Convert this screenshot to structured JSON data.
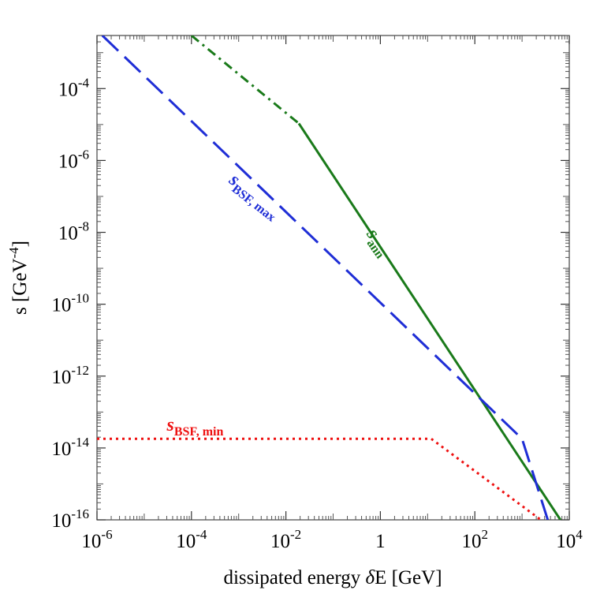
{
  "chart_data": {
    "type": "line",
    "xscale": "log",
    "yscale": "log",
    "xlim": [
      1e-06,
      10000
    ],
    "ylim": [
      1e-16,
      0.003
    ],
    "grid": false,
    "xlabel": {
      "prefix": "dissipated   energy   ",
      "delta": "δ",
      "suffix": "E   [GeV]"
    },
    "ylabel": {
      "prefix": "s   [GeV",
      "exponent": "-4",
      "suffix": "]"
    },
    "x_ticks": [
      {
        "value": 1e-06,
        "base": "10",
        "exp": "-6"
      },
      {
        "value": 0.0001,
        "base": "10",
        "exp": "-4"
      },
      {
        "value": 0.01,
        "base": "10",
        "exp": "-2"
      },
      {
        "value": 1,
        "base": "1",
        "exp": ""
      },
      {
        "value": 100,
        "base": "10",
        "exp": "2"
      },
      {
        "value": 10000,
        "base": "10",
        "exp": "4"
      }
    ],
    "y_ticks": [
      {
        "value": 1e-16,
        "base": "10",
        "exp": "-16"
      },
      {
        "value": 1e-14,
        "base": "10",
        "exp": "-14"
      },
      {
        "value": 1e-12,
        "base": "10",
        "exp": "-12"
      },
      {
        "value": 1e-10,
        "base": "10",
        "exp": "-10"
      },
      {
        "value": 1e-08,
        "base": "10",
        "exp": "-8"
      },
      {
        "value": 1e-06,
        "base": "10",
        "exp": "-6"
      },
      {
        "value": 0.0001,
        "base": "10",
        "exp": "-4"
      }
    ],
    "series": [
      {
        "id": "ann",
        "color": "#1a7a1a",
        "segments": [
          {
            "style": "dashdot",
            "x": [
              0.0001,
              0.0188
            ],
            "y": [
              0.003,
              1.07e-05
            ]
          },
          {
            "style": "solid",
            "x": [
              0.0188,
              6500
            ],
            "y": [
              1.07e-05,
              1e-16
            ]
          }
        ]
      },
      {
        "id": "bsf_max",
        "color": "#1f2ed6",
        "segments": [
          {
            "style": "dashed",
            "x": [
              1.3e-06,
              1000,
              3500
            ],
            "y": [
              0.003,
              1.8e-14,
              1e-16
            ]
          }
        ]
      },
      {
        "id": "bsf_min",
        "color": "#ee1111",
        "segments": [
          {
            "style": "dotted",
            "x": [
              1e-06,
              12,
              2500
            ],
            "y": [
              1.8e-14,
              1.8e-14,
              1e-16
            ]
          }
        ]
      }
    ],
    "annotations": [
      {
        "id": "ann",
        "main": "s",
        "sub": "ann",
        "color": "#1a7a1a",
        "x": 0.5,
        "y": 9e-09,
        "rotate": 55
      },
      {
        "id": "bsf_max",
        "main": "s",
        "sub": "BSF, max",
        "color": "#1f2ed6",
        "x": 0.0006,
        "y": 2.5e-07,
        "rotate": 38
      },
      {
        "id": "bsf_min",
        "main": "s",
        "sub": "BSF, min",
        "color": "#ee1111",
        "x": 3e-05,
        "y": 3e-14,
        "rotate": 0
      }
    ]
  }
}
